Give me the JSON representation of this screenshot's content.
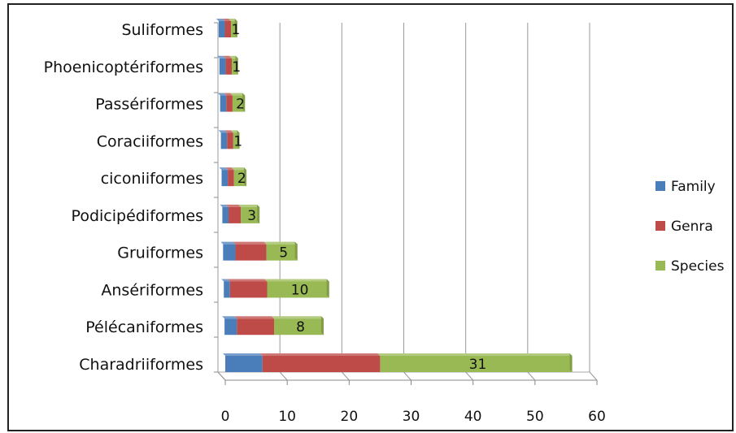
{
  "chart_data": {
    "type": "bar",
    "orientation": "horizontal",
    "stacked": true,
    "categories": [
      "Charadriiformes",
      "Pélécaniformes",
      "Ansériformes",
      "Gruiformes",
      "Podicipédiformes",
      "ciconiiformes",
      "Coraciiformes",
      "Passériformes",
      "Phoenicoptériformes",
      "Suliformes"
    ],
    "series": [
      {
        "name": "Family",
        "color": "#4a7ebb",
        "values": [
          6,
          2,
          1,
          2,
          1,
          1,
          1,
          1,
          1,
          1
        ]
      },
      {
        "name": "Genra",
        "color": "#be4b48",
        "values": [
          19,
          6,
          6,
          5,
          2,
          1,
          1,
          1,
          1,
          1
        ]
      },
      {
        "name": "Species",
        "color": "#98b954",
        "values": [
          31,
          8,
          10,
          5,
          3,
          2,
          1,
          2,
          1,
          1
        ]
      }
    ],
    "data_labels_series": "Species",
    "xlim": [
      0,
      60
    ],
    "xticks": [
      0,
      10,
      20,
      30,
      40,
      50,
      60
    ],
    "grid": true,
    "legend": "right",
    "title": "",
    "xlabel": "",
    "ylabel": ""
  }
}
